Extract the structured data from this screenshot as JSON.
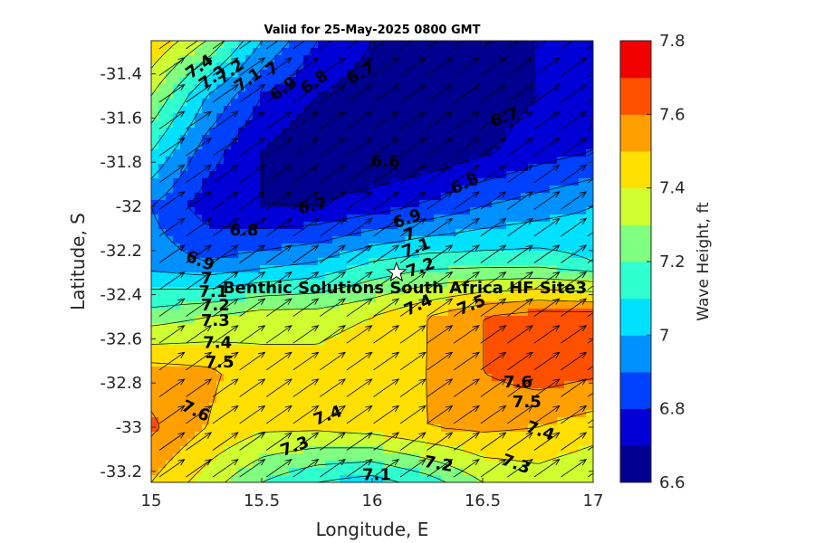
{
  "chart_data": {
    "type": "heatmap",
    "subtype": "filled-contour with wind/wave direction arrows",
    "title": "Valid for 25-May-2025 0800 GMT",
    "xlabel": "Longitude, E",
    "ylabel": "Latitude, S",
    "colorbar_label": "Wave Height, ft",
    "xlim": [
      15,
      17
    ],
    "ylim": [
      -33.25,
      -31.25
    ],
    "xticks": [
      15,
      15.5,
      16,
      16.5,
      17
    ],
    "yticks": [
      -33.2,
      -33,
      -32.8,
      -32.6,
      -32.4,
      -32.2,
      -32,
      -31.8,
      -31.6,
      -31.4
    ],
    "xtick_labels": [
      "15",
      "15.5",
      "16",
      "16.5",
      "17"
    ],
    "ytick_labels": [
      "-33.2",
      "-33",
      "-32.8",
      "-32.6",
      "-32.4",
      "-32.2",
      "-32",
      "-31.8",
      "-31.6",
      "-31.4"
    ],
    "colorbar_range": [
      6.6,
      7.8
    ],
    "colorbar_ticks": [
      6.6,
      6.8,
      7,
      7.2,
      7.4,
      7.6,
      7.8
    ],
    "colorbar_tick_labels": [
      "6.6",
      "6.8",
      "7",
      "7.2",
      "7.4",
      "7.6",
      "7.8"
    ],
    "levels": [
      6.6,
      6.7,
      6.8,
      6.9,
      7.0,
      7.1,
      7.2,
      7.3,
      7.4,
      7.5,
      7.6,
      7.7,
      7.8
    ],
    "level_colors": [
      "#00008f",
      "#0000d6",
      "#0040ff",
      "#0090ff",
      "#00e0ff",
      "#30ffcf",
      "#80ff80",
      "#cfff30",
      "#ffe000",
      "#ffa000",
      "#ff5000",
      "#f00000",
      "#a00000"
    ],
    "grid": false,
    "grid_lon": [
      15,
      15.25,
      15.5,
      15.75,
      16,
      16.25,
      16.5,
      16.75,
      17
    ],
    "grid_lat": [
      -31.25,
      -31.5,
      -31.75,
      -32,
      -32.25,
      -32.5,
      -32.75,
      -33,
      -33.25
    ],
    "wave_height_ft": [
      [
        7.5,
        7.3,
        7.0,
        6.8,
        6.7,
        6.65,
        6.65,
        6.7,
        6.8
      ],
      [
        7.3,
        7.0,
        6.8,
        6.7,
        6.65,
        6.62,
        6.65,
        6.7,
        6.75
      ],
      [
        7.1,
        6.85,
        6.7,
        6.62,
        6.6,
        6.62,
        6.68,
        6.75,
        6.8
      ],
      [
        6.9,
        6.75,
        6.7,
        6.7,
        6.75,
        6.82,
        6.9,
        6.95,
        7.0
      ],
      [
        6.95,
        6.9,
        6.95,
        7.0,
        7.1,
        7.15,
        7.15,
        7.15,
        7.1
      ],
      [
        7.25,
        7.3,
        7.35,
        7.35,
        7.4,
        7.5,
        7.6,
        7.65,
        7.65
      ],
      [
        7.55,
        7.52,
        7.45,
        7.45,
        7.5,
        7.5,
        7.6,
        7.65,
        7.62
      ],
      [
        7.62,
        7.5,
        7.42,
        7.42,
        7.45,
        7.5,
        7.52,
        7.5,
        7.45
      ],
      [
        7.5,
        7.35,
        7.2,
        7.1,
        7.05,
        7.15,
        7.3,
        7.35,
        7.3
      ]
    ],
    "arrow_direction_deg_from_east": 35,
    "contour_labels": [
      {
        "text": "7.4",
        "lon": 15.22,
        "lat": -31.37,
        "angle": -35
      },
      {
        "text": "7.3",
        "lon": 15.28,
        "lat": -31.42,
        "angle": -35
      },
      {
        "text": "7.2",
        "lon": 15.36,
        "lat": -31.39,
        "angle": -35
      },
      {
        "text": "7.1",
        "lon": 15.44,
        "lat": -31.43,
        "angle": -35
      },
      {
        "text": "7",
        "lon": 15.55,
        "lat": -31.38,
        "angle": -35
      },
      {
        "text": "6.9",
        "lon": 15.6,
        "lat": -31.47,
        "angle": -35
      },
      {
        "text": "6.8",
        "lon": 15.74,
        "lat": -31.44,
        "angle": -35
      },
      {
        "text": "6.7",
        "lon": 15.95,
        "lat": -31.4,
        "angle": -28
      },
      {
        "text": "6.7",
        "lon": 16.6,
        "lat": -31.6,
        "angle": -20
      },
      {
        "text": "6.6",
        "lon": 16.06,
        "lat": -31.8,
        "angle": 0
      },
      {
        "text": "6.8",
        "lon": 16.42,
        "lat": -31.9,
        "angle": -25
      },
      {
        "text": "6.7",
        "lon": 15.73,
        "lat": -32.0,
        "angle": -12
      },
      {
        "text": "6.8",
        "lon": 15.42,
        "lat": -32.11,
        "angle": 0
      },
      {
        "text": "6.9",
        "lon": 16.16,
        "lat": -32.06,
        "angle": -20
      },
      {
        "text": "7",
        "lon": 16.17,
        "lat": -32.13,
        "angle": -20
      },
      {
        "text": "7.1",
        "lon": 16.2,
        "lat": -32.19,
        "angle": -20
      },
      {
        "text": "7.2",
        "lon": 16.22,
        "lat": -32.28,
        "angle": -20
      },
      {
        "text": "6.9",
        "lon": 15.22,
        "lat": -32.25,
        "angle": 22
      },
      {
        "text": "7",
        "lon": 15.25,
        "lat": -32.33,
        "angle": 0
      },
      {
        "text": "7.1",
        "lon": 15.28,
        "lat": -32.39,
        "angle": 0
      },
      {
        "text": "7.2",
        "lon": 15.29,
        "lat": -32.45,
        "angle": 0
      },
      {
        "text": "7.3",
        "lon": 15.29,
        "lat": -32.52,
        "angle": 0
      },
      {
        "text": "7.4",
        "lon": 15.3,
        "lat": -32.62,
        "angle": 0
      },
      {
        "text": "7.5",
        "lon": 15.31,
        "lat": -32.71,
        "angle": 0
      },
      {
        "text": "7.4",
        "lon": 16.21,
        "lat": -32.45,
        "angle": -25
      },
      {
        "text": "7.5",
        "lon": 16.45,
        "lat": -32.45,
        "angle": -22
      },
      {
        "text": "7.6",
        "lon": 16.66,
        "lat": -32.8,
        "angle": 0
      },
      {
        "text": "7.5",
        "lon": 16.7,
        "lat": -32.89,
        "angle": 0
      },
      {
        "text": "7.4",
        "lon": 16.76,
        "lat": -33.02,
        "angle": 20
      },
      {
        "text": "7.3",
        "lon": 16.65,
        "lat": -33.17,
        "angle": 20
      },
      {
        "text": "7.2",
        "lon": 16.3,
        "lat": -33.17,
        "angle": 10
      },
      {
        "text": "7.1",
        "lon": 16.02,
        "lat": -33.22,
        "angle": 0
      },
      {
        "text": "7.3",
        "lon": 15.65,
        "lat": -33.09,
        "angle": -20
      },
      {
        "text": "7.4",
        "lon": 15.8,
        "lat": -32.95,
        "angle": -20
      },
      {
        "text": "7.6",
        "lon": 15.2,
        "lat": -32.93,
        "angle": 25
      }
    ],
    "site": {
      "name": "Benthic Solutions South Africa HF Site3",
      "lon": 16.11,
      "lat": -32.3,
      "marker": "white-star"
    }
  }
}
